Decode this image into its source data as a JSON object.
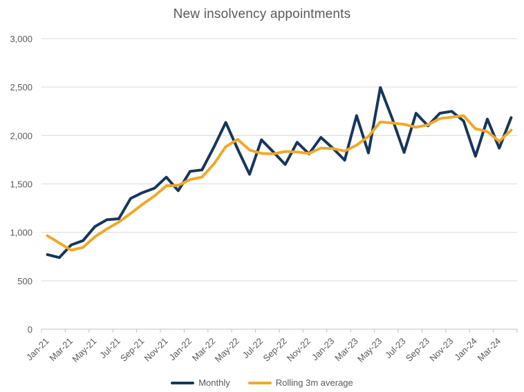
{
  "title": "New insolvency appointments",
  "colors": {
    "monthly_line": "#17365D",
    "rolling_line": "#F0A827",
    "gridline": "#D9D9D9",
    "axis_line": "#BFBFBF",
    "label_text": "#595959"
  },
  "chart_data": {
    "type": "line",
    "title": "New insolvency appointments",
    "xlabel": "",
    "ylabel": "",
    "ylim": [
      0,
      3000
    ],
    "y_ticks": [
      0,
      500,
      1000,
      1500,
      2000,
      2500,
      3000
    ],
    "y_tick_labels": [
      "0",
      "500",
      "1,000",
      "1,500",
      "2,000",
      "2,500",
      "3,000"
    ],
    "grid": "horizontal",
    "legend_position": "bottom",
    "x": [
      "Jan-21",
      "Feb-21",
      "Mar-21",
      "Apr-21",
      "May-21",
      "Jun-21",
      "Jul-21",
      "Aug-21",
      "Sep-21",
      "Oct-21",
      "Nov-21",
      "Dec-21",
      "Jan-22",
      "Feb-22",
      "Mar-22",
      "Apr-22",
      "May-22",
      "Jun-22",
      "Jul-22",
      "Aug-22",
      "Sep-22",
      "Oct-22",
      "Nov-22",
      "Dec-22",
      "Jan-23",
      "Feb-23",
      "Mar-23",
      "Apr-23",
      "May-23",
      "Jun-23",
      "Jul-23",
      "Aug-23",
      "Sep-23",
      "Oct-23",
      "Nov-23",
      "Dec-23",
      "Jan-24",
      "Feb-24",
      "Mar-24",
      "Apr-24"
    ],
    "x_tick_labels": [
      "Jan-21",
      "Mar-21",
      "May-21",
      "Jul-21",
      "Sep-21",
      "Nov-21",
      "Jan-22",
      "Mar-22",
      "May-22",
      "Jul-22",
      "Sep-22",
      "Nov-22",
      "Jan-23",
      "Mar-23",
      "May-23",
      "Jul-23",
      "Sep-23",
      "Nov-23",
      "Jan-24",
      "Mar-24"
    ],
    "series": [
      {
        "name": "Monthly",
        "color": "#17365D",
        "values": [
          770,
          740,
          870,
          915,
          1060,
          1130,
          1140,
          1350,
          1410,
          1455,
          1570,
          1430,
          1630,
          1645,
          1880,
          2135,
          1860,
          1600,
          1955,
          1830,
          1700,
          1930,
          1810,
          1980,
          1870,
          1745,
          2205,
          1820,
          2495,
          2175,
          1825,
          2230,
          2100,
          2230,
          2250,
          2150,
          1785,
          2170,
          1870,
          2185
        ]
      },
      {
        "name": "Rolling 3m average",
        "color": "#F0A827",
        "values": [
          965,
          890,
          815,
          845,
          955,
          1035,
          1105,
          1195,
          1290,
          1375,
          1480,
          1485,
          1545,
          1570,
          1705,
          1885,
          1960,
          1850,
          1815,
          1810,
          1835,
          1830,
          1815,
          1870,
          1865,
          1840,
          1900,
          1990,
          2140,
          2130,
          2115,
          2085,
          2110,
          2175,
          2190,
          2205,
          2070,
          2040,
          1940,
          2055
        ]
      }
    ]
  }
}
